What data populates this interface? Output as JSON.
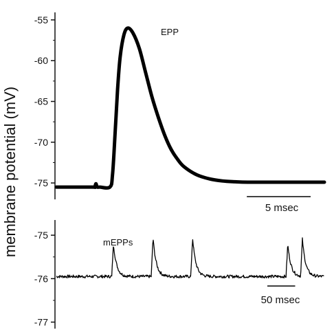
{
  "chart_data": [
    {
      "type": "line",
      "ylabel": "membrane potential (mV)",
      "ylim": [
        -76,
        -54.5
      ],
      "yticks": [
        -55,
        -60,
        -65,
        -70,
        -75
      ],
      "ytick_labels": [
        "-55",
        "-60",
        "-65",
        "-70",
        "-75"
      ],
      "series": [
        {
          "name": "EPP",
          "x_ms": [
            0,
            2.8,
            3.0,
            3.1,
            3.2,
            3.4,
            4.2,
            4.4,
            4.6,
            4.8,
            5.0,
            5.3,
            5.6,
            6.0,
            6.5,
            7.0,
            7.5,
            8.0,
            8.5,
            9.0,
            9.5,
            10.0,
            11.0,
            12.0,
            13.0,
            14.0,
            15.0,
            17.0,
            19.0,
            21.0
          ],
          "y_mV": [
            -75.5,
            -75.5,
            -75.5,
            -75.1,
            -75.5,
            -75.5,
            -75.5,
            -74.0,
            -69.0,
            -63.5,
            -59.5,
            -56.8,
            -56.0,
            -56.6,
            -58.5,
            -61.5,
            -64.5,
            -67.0,
            -69.2,
            -70.9,
            -72.1,
            -73.0,
            -74.0,
            -74.5,
            -74.75,
            -74.85,
            -74.9,
            -74.9,
            -74.9,
            -74.9
          ]
        }
      ],
      "annotations": [
        "EPP"
      ],
      "scale_bar": "5 msec",
      "scale_bar_ms": 5
    },
    {
      "type": "line",
      "ylim": [
        -77.15,
        -74.65
      ],
      "yticks": [
        -75,
        -76,
        -77
      ],
      "ytick_labels": [
        "-75",
        "-76",
        "-77"
      ],
      "series": [
        {
          "name": "mEPPs",
          "baseline_mV": -75.95,
          "event_times_ms": [
            39,
            66,
            93,
            158,
            168
          ],
          "event_peaks_mV": [
            -75.2,
            -75.05,
            -75.05,
            -75.2,
            -75.1
          ],
          "duration_ms": 183
        }
      ],
      "annotations": [
        "mEPPs"
      ],
      "scale_bar": "50 msec",
      "scale_bar_ms": 50
    }
  ]
}
